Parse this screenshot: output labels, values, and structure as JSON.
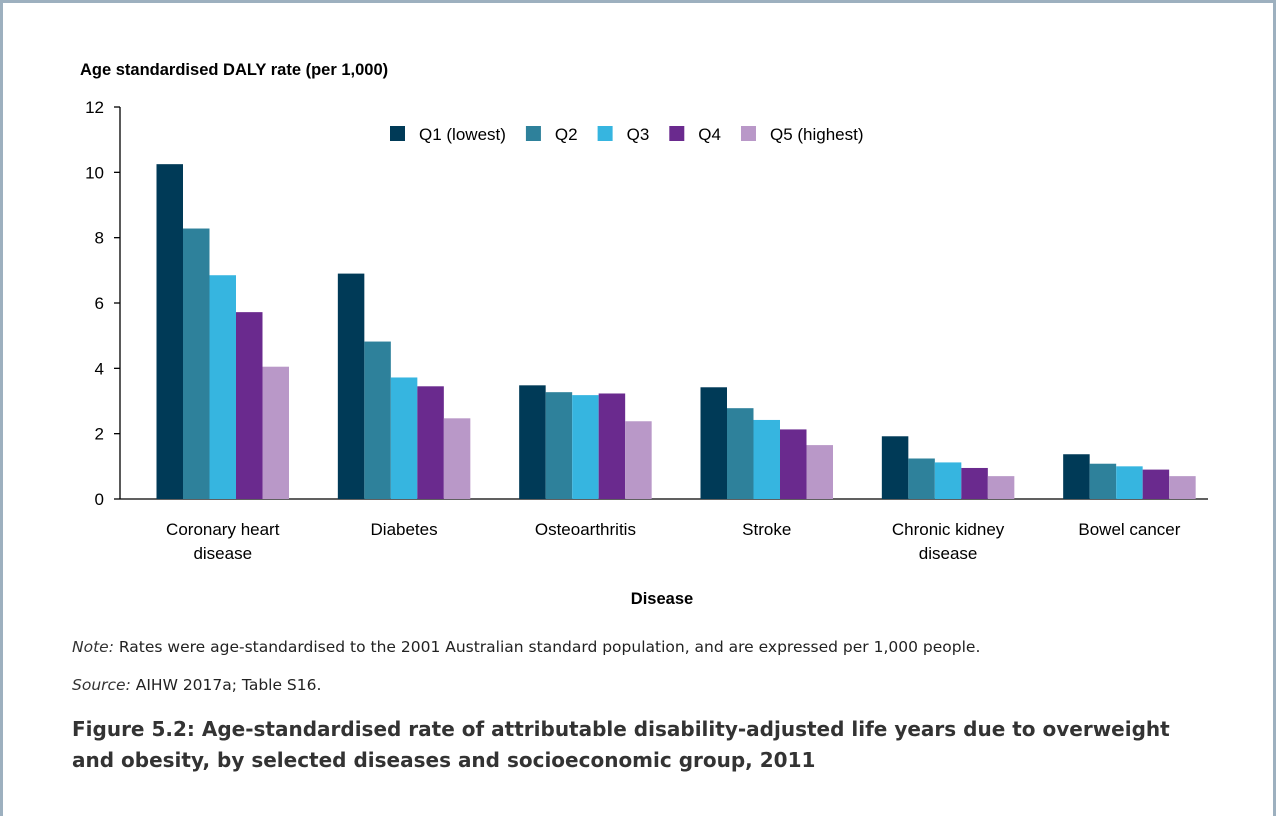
{
  "chart_data": {
    "type": "bar",
    "title": "",
    "ylabel": "Age standardised DALY rate (per 1,000)",
    "xlabel": "Disease",
    "ylim": [
      0,
      12
    ],
    "yticks": [
      0,
      2,
      4,
      6,
      8,
      10,
      12
    ],
    "grid": false,
    "legend_position": "top-center",
    "categories": [
      [
        "Coronary heart",
        "disease"
      ],
      [
        "Diabetes"
      ],
      [
        "Osteoarthritis"
      ],
      [
        "Stroke"
      ],
      [
        "Chronic kidney",
        "disease"
      ],
      [
        "Bowel  cancer"
      ]
    ],
    "series": [
      {
        "name": "Q1 (lowest)",
        "color": "#003a57",
        "values": [
          10.25,
          6.9,
          3.48,
          3.42,
          1.92,
          1.37
        ]
      },
      {
        "name": "Q2",
        "color": "#2e819b",
        "values": [
          8.28,
          4.82,
          3.27,
          2.78,
          1.24,
          1.08
        ]
      },
      {
        "name": "Q3",
        "color": "#36b5e0",
        "values": [
          6.85,
          3.72,
          3.18,
          2.42,
          1.12,
          1.0
        ]
      },
      {
        "name": "Q4",
        "color": "#6a2a8e",
        "values": [
          5.72,
          3.45,
          3.23,
          2.13,
          0.95,
          0.9
        ]
      },
      {
        "name": "Q5 (highest)",
        "color": "#b998c8",
        "values": [
          4.05,
          2.47,
          2.38,
          1.65,
          0.7,
          0.7
        ]
      }
    ]
  },
  "notes": {
    "note_label": "Note:",
    "note_text": " Rates were age-standardised to the 2001 Australian standard population, and are expressed per 1,000 people.",
    "source_label": "Source:",
    "source_text": " AIHW 2017a; Table S16."
  },
  "caption": "Figure 5.2: Age-standardised rate of attributable disability-adjusted life years due to overweight and obesity, by selected diseases and socioeconomic group, 2011"
}
